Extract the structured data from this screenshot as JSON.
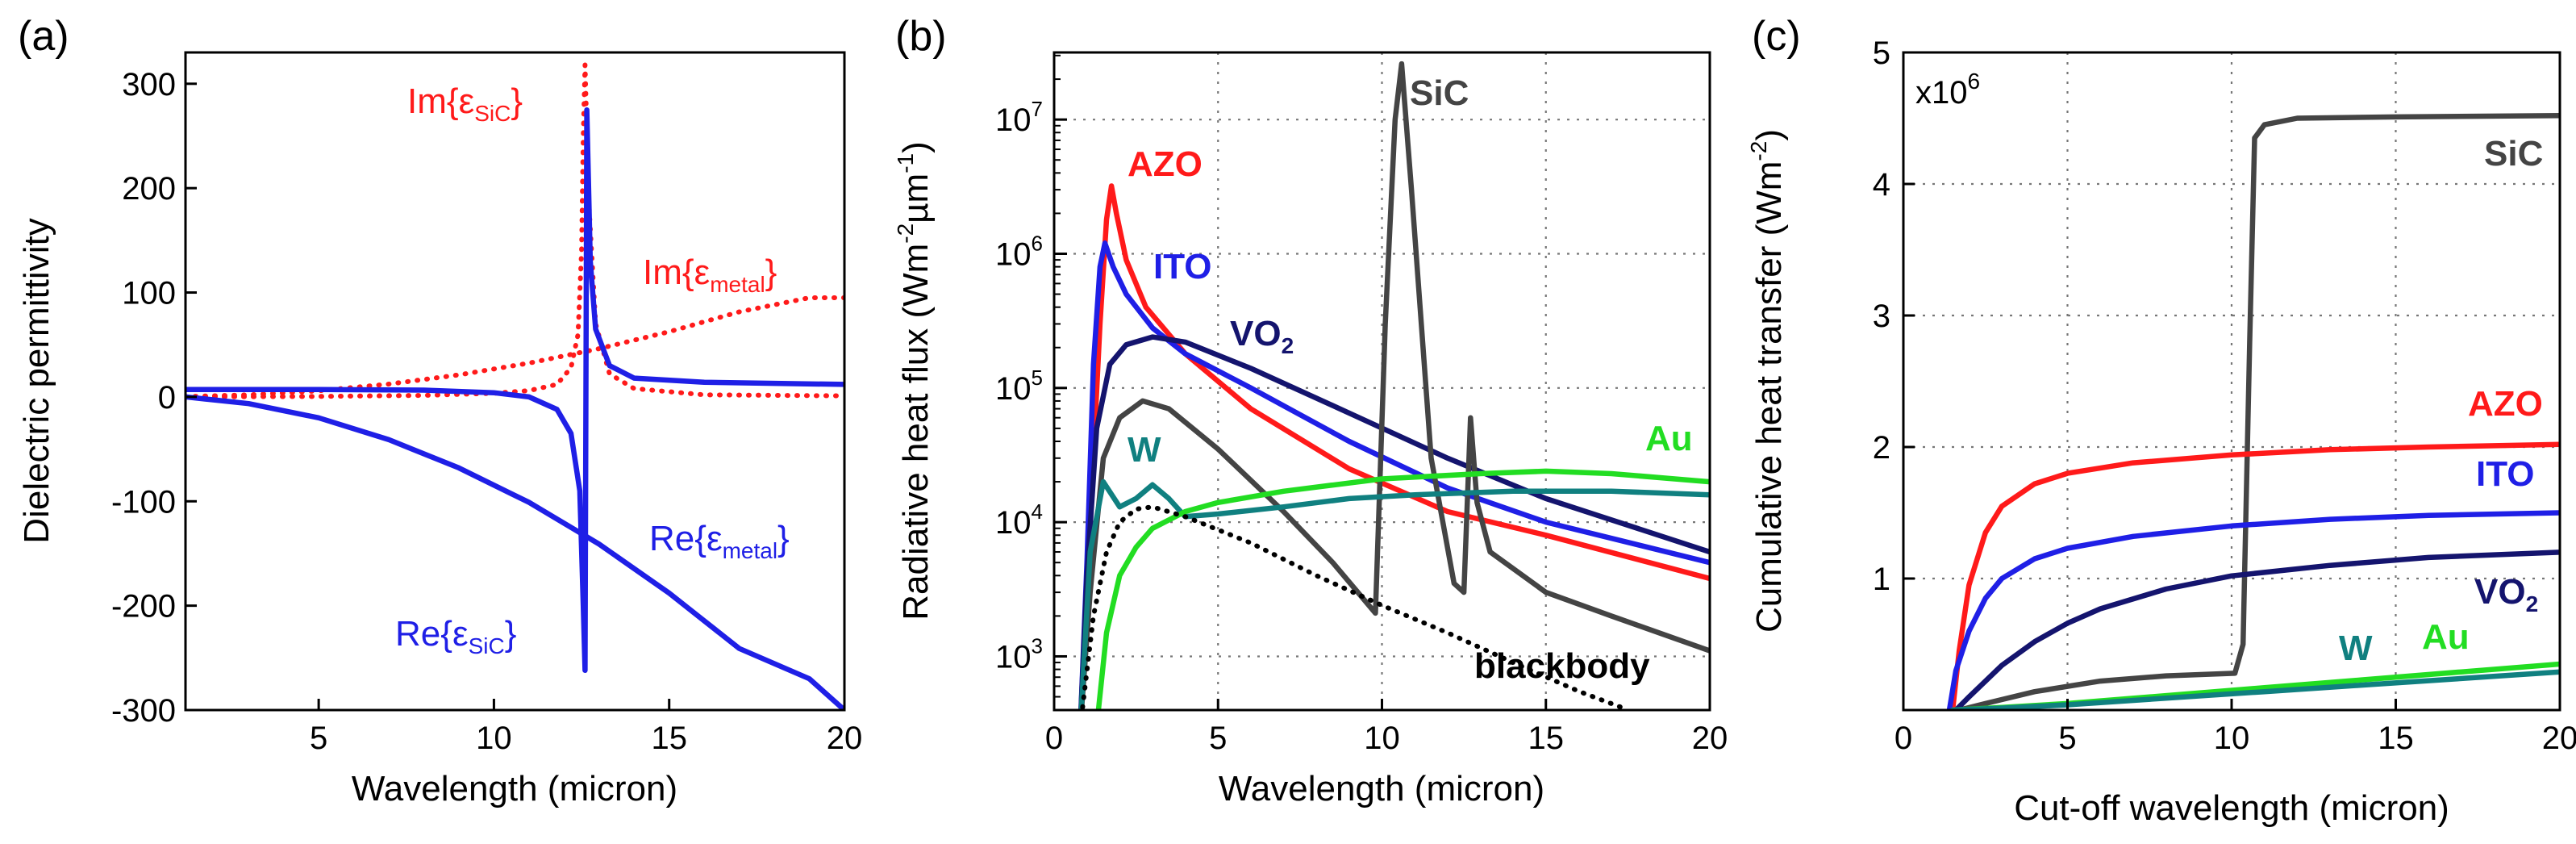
{
  "figure": {
    "colors": {
      "red": "#ff1a1a",
      "blue": "#1f1fe6",
      "darkblue": "#14146e",
      "gray": "#444444",
      "green": "#22dd22",
      "teal": "#108080",
      "black": "#000000"
    }
  },
  "chart_data": [
    {
      "type": "line",
      "panel_label": "(a)",
      "xlabel": "Wavelength (micron)",
      "ylabel": "Dielectric permittivity",
      "xlim": [
        1.2,
        20
      ],
      "ylim": [
        -300,
        330
      ],
      "xticks": [
        "5",
        "10",
        "15",
        "20"
      ],
      "yticks": [
        "-300",
        "-200",
        "-100",
        "0",
        "100",
        "200",
        "300"
      ],
      "grid": false,
      "annotations": {
        "im_sic": {
          "pre": "Im{",
          "eps": "ε",
          "sub": "SiC",
          "post": "}"
        },
        "im_metal": {
          "pre": "Im{",
          "eps": "ε",
          "sub": "metal",
          "post": "}"
        },
        "re_metal": {
          "pre": "Re{",
          "eps": "ε",
          "sub": "metal",
          "post": "}"
        },
        "re_sic": {
          "pre": "Re{",
          "eps": "ε",
          "sub": "SiC",
          "post": "}"
        }
      },
      "series": [
        {
          "name": "Im{εmetal}",
          "style": "dotted",
          "color": "#ff1a1a",
          "x": [
            1.2,
            3,
            5,
            7,
            9,
            11,
            13,
            15,
            17,
            19,
            20
          ],
          "y": [
            0.4,
            1.9,
            5.9,
            12.3,
            21.1,
            32.4,
            46.2,
            62.5,
            81.5,
            95,
            95
          ]
        },
        {
          "name": "Im{εSiC}",
          "style": "dotted",
          "color": "#ff1a1a",
          "x": [
            1.2,
            5,
            8,
            10,
            11,
            11.8,
            12.2,
            12.4,
            12.5,
            12.55,
            12.6,
            12.7,
            12.9,
            13.3,
            14,
            16,
            20
          ],
          "y": [
            0,
            0.5,
            1.5,
            3.5,
            6,
            12,
            28,
            60,
            140,
            250,
            318,
            190,
            70,
            22,
            8,
            2,
            1
          ]
        },
        {
          "name": "Re{εmetal}",
          "style": "solid",
          "color": "#1f1fe6",
          "x": [
            1.2,
            3,
            5,
            7,
            9,
            11,
            13,
            15,
            17,
            19,
            20
          ],
          "y": [
            0,
            -6.4,
            -20,
            -41,
            -68,
            -101,
            -141,
            -188,
            -241,
            -270,
            -300
          ]
        },
        {
          "name": "Re{εSiC}",
          "style": "solid",
          "color": "#1f1fe6",
          "x": [
            1.2,
            5,
            8,
            10,
            11,
            11.8,
            12.2,
            12.45,
            12.55,
            12.6,
            12.65,
            12.75,
            12.9,
            13.3,
            14,
            16,
            20
          ],
          "y": [
            7,
            7,
            6.5,
            4,
            0,
            -12,
            -35,
            -90,
            -200,
            -262,
            275,
            130,
            65,
            30,
            18,
            14,
            12
          ]
        }
      ]
    },
    {
      "type": "line",
      "panel_label": "(b)",
      "xlabel": "Wavelength (micron)",
      "ylabel": {
        "pre": "Radiative heat flux (Wm",
        "sup1": "-2",
        "mid": "µm",
        "sup2": "-1",
        "post": ")"
      },
      "xlim": [
        0,
        20
      ],
      "ylim_log10": [
        2.6,
        7.5
      ],
      "xticks": [
        "0",
        "5",
        "10",
        "15",
        "20"
      ],
      "yticks": [
        {
          "base": "10",
          "exp": "3"
        },
        {
          "base": "10",
          "exp": "4"
        },
        {
          "base": "10",
          "exp": "5"
        },
        {
          "base": "10",
          "exp": "6"
        },
        {
          "base": "10",
          "exp": "7"
        }
      ],
      "grid": true,
      "labels": {
        "azo": "AZO",
        "ito": "ITO",
        "vo2": "VO",
        "vo2_sub": "2",
        "sic": "SiC",
        "w": "W",
        "au": "Au",
        "blackbody": "blackbody"
      },
      "series": [
        {
          "name": "AZO",
          "style": "solid",
          "color": "#ff1a1a",
          "x": [
            0.8,
            1.1,
            1.4,
            1.6,
            1.75,
            1.9,
            2.2,
            2.8,
            4,
            6,
            9,
            12,
            15,
            20
          ],
          "y": [
            300.0,
            10000.0,
            300000.0,
            1800000.0,
            3200000.0,
            2000000.0,
            900000.0,
            400000.0,
            180000.0,
            70000.0,
            25000.0,
            12000.0,
            8000.0,
            3800.0
          ]
        },
        {
          "name": "ITO",
          "style": "solid",
          "color": "#1f1fe6",
          "x": [
            0.8,
            1.0,
            1.2,
            1.4,
            1.55,
            1.8,
            2.2,
            3,
            4,
            6,
            9,
            12,
            15,
            20
          ],
          "y": [
            300.0,
            5000.0,
            150000.0,
            800000.0,
            1200000.0,
            800000.0,
            500000.0,
            280000.0,
            180000.0,
            100000.0,
            40000.0,
            18000.0,
            10000.0,
            5000.0
          ]
        },
        {
          "name": "VO2",
          "style": "solid",
          "color": "#14146e",
          "x": [
            0.8,
            1.0,
            1.3,
            1.7,
            2.2,
            3,
            4,
            6,
            9,
            12,
            15,
            20
          ],
          "y": [
            300.0,
            4000.0,
            50000.0,
            150000.0,
            210000.0,
            240000.0,
            220000.0,
            140000.0,
            65000.0,
            30000.0,
            15000.0,
            6000.0
          ]
        },
        {
          "name": "SiC",
          "style": "solid",
          "color": "#444444",
          "x": [
            0.8,
            1.1,
            1.5,
            2,
            2.7,
            3.5,
            5,
            7,
            8.5,
            9.8,
            10.1,
            10.4,
            10.6,
            10.9,
            11.5,
            12.2,
            12.5,
            12.7,
            12.9,
            13.3,
            15,
            17,
            20
          ],
          "y": [
            300.0,
            3000.0,
            30000.0,
            60000.0,
            80000.0,
            70000.0,
            35000.0,
            12000.0,
            5000.0,
            2100.0,
            300000.0,
            10000000.0,
            26000000.0,
            3000000.0,
            30000.0,
            3500.0,
            3000.0,
            60000.0,
            14000.0,
            6000.0,
            3000.0,
            2000.0,
            1100.0
          ]
        },
        {
          "name": "W",
          "style": "solid",
          "color": "#108080",
          "x": [
            0.8,
            1.1,
            1.5,
            2,
            2.5,
            3,
            3.5,
            4,
            5,
            7,
            9,
            11,
            14,
            17,
            20
          ],
          "y": [
            300.0,
            6000.0,
            20000.0,
            13000.0,
            15000.0,
            19000.0,
            15000.0,
            11000.0,
            11500.0,
            13000.0,
            15000.0,
            16000.0,
            17000.0,
            17000.0,
            16000.0
          ]
        },
        {
          "name": "Au",
          "style": "solid",
          "color": "#22dd22",
          "x": [
            1.3,
            1.6,
            2,
            2.5,
            3,
            4,
            5,
            7,
            10,
            13,
            15,
            17,
            20
          ],
          "y": [
            300.0,
            1500.0,
            4000.0,
            6500.0,
            9000.0,
            12000.0,
            14000.0,
            17000.0,
            21000.0,
            23000.0,
            24000.0,
            23000.0,
            20000.0
          ]
        },
        {
          "name": "blackbody",
          "style": "dotted",
          "color": "#000000",
          "x": [
            0.8,
            1.2,
            1.6,
            2,
            2.5,
            3,
            4,
            6,
            8,
            10,
            12,
            14,
            16,
            17.5
          ],
          "y": [
            300.0,
            2000.0,
            6000.0,
            10000.0,
            12500.0,
            13000.0,
            11000.0,
            7000.0,
            4000.0,
            2400.0,
            1500.0,
            900.0,
            550.0,
            400.0
          ]
        }
      ]
    },
    {
      "type": "line",
      "panel_label": "(c)",
      "xlabel": "Cut-off wavelength (micron)",
      "ylabel": {
        "pre": "Cumulative heat transfer (Wm",
        "sup": "-2",
        "post": ")"
      },
      "xlim": [
        0,
        20
      ],
      "ylim": [
        0,
        5
      ],
      "xticks": [
        "0",
        "5",
        "10",
        "15",
        "20"
      ],
      "yticks": [
        "1",
        "2",
        "3",
        "4",
        "5"
      ],
      "scale_label": {
        "base": "x10",
        "exp": "6"
      },
      "grid": true,
      "labels": {
        "sic": "SiC",
        "azo": "AZO",
        "ito": "ITO",
        "vo2": "VO",
        "vo2_sub": "2",
        "w": "W",
        "au": "Au"
      },
      "series": [
        {
          "name": "SiC",
          "style": "solid",
          "color": "#444444",
          "x": [
            1.7,
            2.5,
            4,
            6,
            8,
            10.1,
            10.35,
            10.55,
            10.7,
            11,
            12,
            15,
            20
          ],
          "y": [
            0,
            0.05,
            0.14,
            0.22,
            0.26,
            0.28,
            0.5,
            2.8,
            4.35,
            4.45,
            4.5,
            4.51,
            4.52
          ]
        },
        {
          "name": "AZO",
          "style": "solid",
          "color": "#ff1a1a",
          "x": [
            1.5,
            1.7,
            2,
            2.5,
            3,
            4,
            5,
            7,
            10,
            13,
            16,
            20
          ],
          "y": [
            0,
            0.45,
            0.95,
            1.35,
            1.55,
            1.72,
            1.8,
            1.88,
            1.94,
            1.98,
            2.0,
            2.02
          ]
        },
        {
          "name": "ITO",
          "style": "solid",
          "color": "#1f1fe6",
          "x": [
            1.4,
            1.6,
            2,
            2.5,
            3,
            4,
            5,
            7,
            10,
            13,
            16,
            20
          ],
          "y": [
            0,
            0.3,
            0.6,
            0.85,
            1.0,
            1.15,
            1.23,
            1.32,
            1.4,
            1.45,
            1.48,
            1.5
          ]
        },
        {
          "name": "VO2",
          "style": "solid",
          "color": "#14146e",
          "x": [
            1.6,
            2,
            2.5,
            3,
            4,
            5,
            6,
            8,
            10,
            13,
            16,
            20
          ],
          "y": [
            0,
            0.1,
            0.22,
            0.34,
            0.52,
            0.66,
            0.77,
            0.92,
            1.02,
            1.1,
            1.16,
            1.2
          ]
        },
        {
          "name": "Au",
          "style": "solid",
          "color": "#22dd22",
          "x": [
            1.5,
            3,
            5,
            8,
            11,
            14,
            17,
            20
          ],
          "y": [
            0,
            0.02,
            0.05,
            0.11,
            0.17,
            0.23,
            0.29,
            0.35
          ]
        },
        {
          "name": "W",
          "style": "solid",
          "color": "#108080",
          "x": [
            1.5,
            3,
            5,
            8,
            11,
            14,
            17,
            20
          ],
          "y": [
            0,
            0.015,
            0.04,
            0.09,
            0.14,
            0.19,
            0.24,
            0.29
          ]
        }
      ]
    }
  ]
}
